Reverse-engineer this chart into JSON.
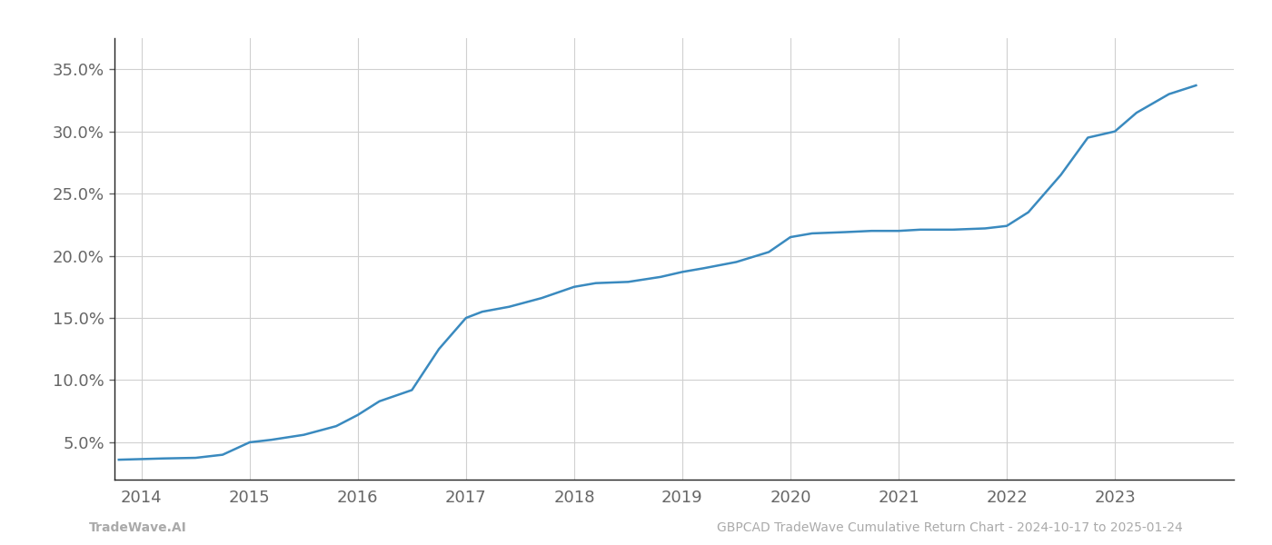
{
  "title": "",
  "xlabel": "",
  "ylabel": "",
  "line_color": "#3a8abf",
  "line_width": 1.8,
  "background_color": "#ffffff",
  "grid_color": "#d0d0d0",
  "x_values": [
    2013.79,
    2014.0,
    2014.2,
    2014.5,
    2014.75,
    2015.0,
    2015.2,
    2015.5,
    2015.8,
    2016.0,
    2016.2,
    2016.5,
    2016.75,
    2017.0,
    2017.15,
    2017.4,
    2017.7,
    2018.0,
    2018.2,
    2018.5,
    2018.8,
    2019.0,
    2019.2,
    2019.5,
    2019.8,
    2020.0,
    2020.2,
    2020.5,
    2020.75,
    2021.0,
    2021.2,
    2021.5,
    2021.8,
    2022.0,
    2022.2,
    2022.5,
    2022.75,
    2023.0,
    2023.2,
    2023.5,
    2023.75
  ],
  "y_values": [
    3.6,
    3.65,
    3.7,
    3.75,
    4.0,
    5.0,
    5.2,
    5.6,
    6.3,
    7.2,
    8.3,
    9.2,
    12.5,
    15.0,
    15.5,
    15.9,
    16.6,
    17.5,
    17.8,
    17.9,
    18.3,
    18.7,
    19.0,
    19.5,
    20.3,
    21.5,
    21.8,
    21.9,
    22.0,
    22.0,
    22.1,
    22.1,
    22.2,
    22.4,
    23.5,
    26.5,
    29.5,
    30.0,
    31.5,
    33.0,
    33.7
  ],
  "xlim": [
    2013.75,
    2024.1
  ],
  "ylim": [
    2.0,
    37.5
  ],
  "xticks": [
    2014,
    2015,
    2016,
    2017,
    2018,
    2019,
    2020,
    2021,
    2022,
    2023
  ],
  "yticks": [
    5.0,
    10.0,
    15.0,
    20.0,
    25.0,
    30.0,
    35.0
  ],
  "ytick_labels": [
    "5.0%",
    "10.0%",
    "15.0%",
    "20.0%",
    "25.0%",
    "30.0%",
    "35.0%"
  ],
  "xtick_labels": [
    "2014",
    "2015",
    "2016",
    "2017",
    "2018",
    "2019",
    "2020",
    "2021",
    "2022",
    "2023"
  ],
  "watermark_left": "TradeWave.AI",
  "watermark_right": "GBPCAD TradeWave Cumulative Return Chart - 2024-10-17 to 2025-01-24",
  "watermark_color": "#aaaaaa",
  "watermark_fontsize": 10,
  "tick_fontsize": 13,
  "figsize": [
    14.0,
    6.0
  ],
  "dpi": 100
}
